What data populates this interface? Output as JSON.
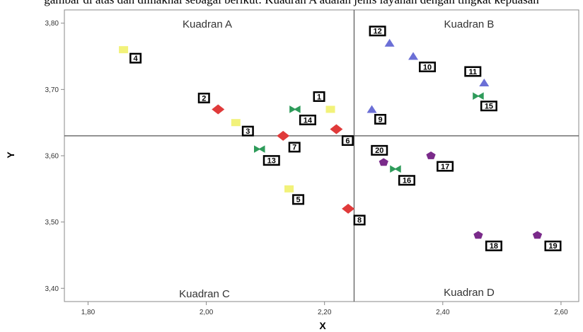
{
  "header_fragment": "gambar di atas dan dimaknai sebagai berikut: Kuadran A adalah jenis layanan dengan tingkat kepuasan",
  "chart_data": {
    "type": "scatter",
    "title": "",
    "xlabel": "X",
    "ylabel": "Y",
    "xlim": [
      1.76,
      2.63
    ],
    "ylim": [
      3.38,
      3.82
    ],
    "xticks": [
      1.8,
      2.0,
      2.2,
      2.4,
      2.6
    ],
    "xtick_labels": [
      "1,80",
      "2,00",
      "2,20",
      "2,40",
      "2,60"
    ],
    "yticks": [
      3.4,
      3.5,
      3.6,
      3.7,
      3.8
    ],
    "ytick_labels": [
      "3,40",
      "3,50",
      "3,60",
      "3,70",
      "3,80"
    ],
    "grid": false,
    "reference_lines": {
      "x": 2.25,
      "y": 3.63
    },
    "quadrant_labels": [
      "Kuadran A",
      "Kuadran B",
      "Kuadran C",
      "Kuadran D"
    ],
    "series": [
      {
        "marker": "square",
        "color": "#f2f27a",
        "points": [
          {
            "label": "4",
            "x": 1.86,
            "y": 3.76
          },
          {
            "label": "1",
            "x": 2.21,
            "y": 3.67
          },
          {
            "label": "3",
            "x": 2.05,
            "y": 3.65
          },
          {
            "label": "5",
            "x": 2.14,
            "y": 3.55
          }
        ]
      },
      {
        "marker": "diamond",
        "color": "#e03a3a",
        "points": [
          {
            "label": "2",
            "x": 2.02,
            "y": 3.67
          },
          {
            "label": "7",
            "x": 2.13,
            "y": 3.63
          },
          {
            "label": "6",
            "x": 2.22,
            "y": 3.64
          },
          {
            "label": "8",
            "x": 2.24,
            "y": 3.52
          }
        ]
      },
      {
        "marker": "bowtie",
        "color": "#2e9b5a",
        "points": [
          {
            "label": "14",
            "x": 2.15,
            "y": 3.67
          },
          {
            "label": "13",
            "x": 2.09,
            "y": 3.61
          },
          {
            "label": "16",
            "x": 2.32,
            "y": 3.58
          },
          {
            "label": "15",
            "x": 2.46,
            "y": 3.69
          }
        ]
      },
      {
        "marker": "triangle",
        "color": "#6b6fd6",
        "points": [
          {
            "label": "12",
            "x": 2.31,
            "y": 3.77
          },
          {
            "label": "10",
            "x": 2.35,
            "y": 3.75
          },
          {
            "label": "11",
            "x": 2.47,
            "y": 3.71
          },
          {
            "label": "9",
            "x": 2.28,
            "y": 3.67
          }
        ]
      },
      {
        "marker": "pentagon",
        "color": "#7a2a8a",
        "points": [
          {
            "label": "20",
            "x": 2.3,
            "y": 3.59
          },
          {
            "label": "17",
            "x": 2.38,
            "y": 3.6
          },
          {
            "label": "18",
            "x": 2.46,
            "y": 3.48
          },
          {
            "label": "19",
            "x": 2.56,
            "y": 3.48
          }
        ]
      }
    ]
  }
}
